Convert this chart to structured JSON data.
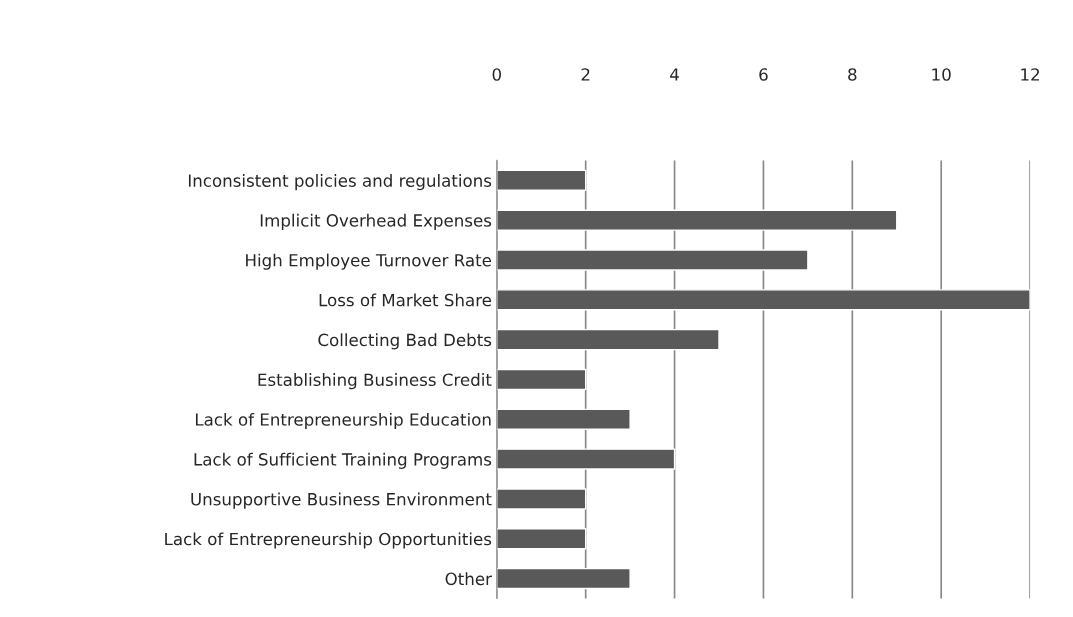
{
  "chart_data": {
    "type": "bar",
    "orientation": "horizontal",
    "categories": [
      "Inconsistent policies and regulations",
      "Implicit Overhead Expenses",
      "High Employee Turnover Rate",
      "Loss of Market Share",
      "Collecting Bad Debts",
      "Establishing Business Credit",
      "Lack of Entrepreneurship Education",
      "Lack of Sufficient Training Programs",
      "Unsupportive Business Environment",
      "Lack of Entrepreneurship Opportunities",
      "Other"
    ],
    "values": [
      2,
      9,
      7,
      12,
      5,
      2,
      3,
      4,
      2,
      2,
      3
    ],
    "color": "#595959",
    "xlim": [
      0,
      12
    ],
    "xticks": [
      0,
      2,
      4,
      6,
      8,
      10,
      12
    ],
    "grid": "x",
    "legend": false
  }
}
